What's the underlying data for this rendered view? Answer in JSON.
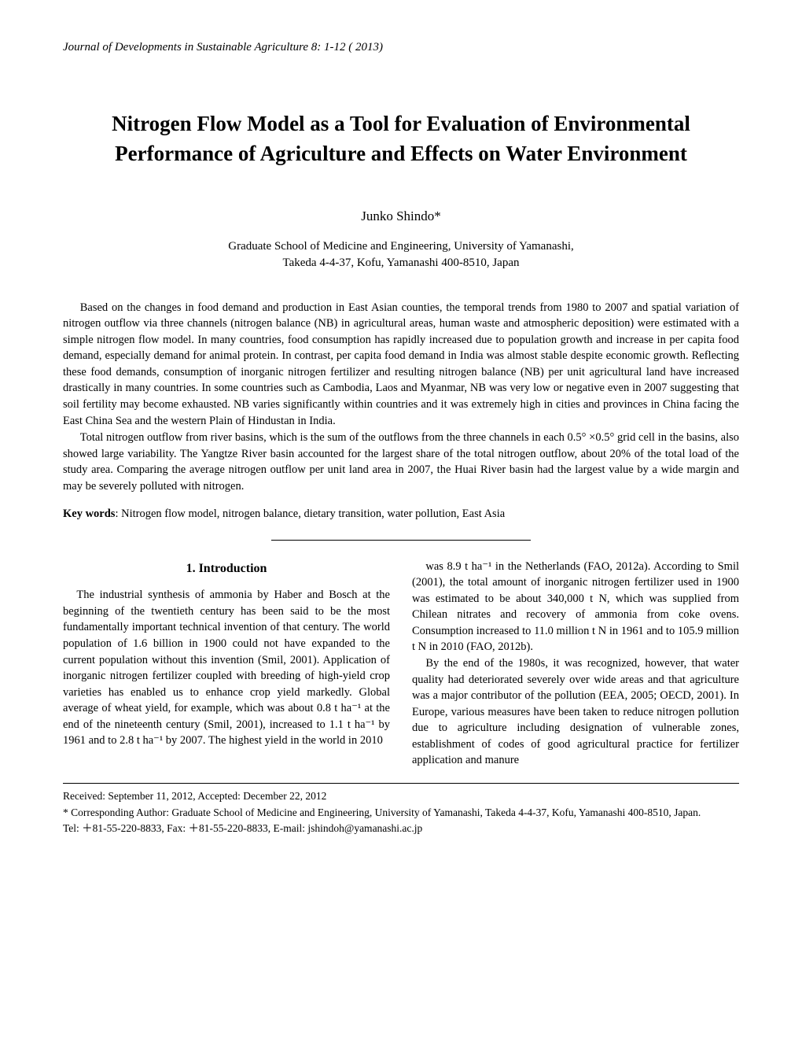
{
  "journal": "Journal of Developments in Sustainable Agriculture 8: 1-12 ( 2013)",
  "title": "Nitrogen Flow Model as a Tool for Evaluation of Environmental Performance of Agriculture and Effects on Water Environment",
  "author": "Junko Shindo*",
  "affiliation_line1": "Graduate School of Medicine and Engineering, University of Yamanashi,",
  "affiliation_line2": "Takeda 4-4-37, Kofu, Yamanashi 400-8510, Japan",
  "abstract": {
    "p1": "Based on the changes in food demand and production in East Asian counties, the temporal trends from 1980 to 2007 and spatial variation of nitrogen outflow via three channels (nitrogen balance (NB) in agricultural areas, human waste and atmospheric deposition) were estimated with a simple nitrogen flow model. In many countries, food consumption has rapidly increased due to population growth and increase in per capita food demand, especially demand for animal protein. In contrast, per capita food demand in India was almost stable despite economic growth. Reflecting these food demands, consumption of inorganic nitrogen fertilizer and resulting nitrogen balance (NB) per unit agricultural land have increased drastically in many countries. In some countries such as Cambodia, Laos and Myanmar, NB was very low or negative even in 2007 suggesting that soil fertility may become exhausted. NB varies significantly within countries and it was extremely high in cities and provinces in China facing the East China Sea and the western Plain of Hindustan in India.",
    "p2": "Total nitrogen outflow from river basins, which is the sum of the outflows from the three channels in each 0.5° ×0.5° grid cell in the basins, also showed large variability. The Yangtze River basin accounted for the largest share of the total nitrogen outflow, about 20% of the total load of the study area. Comparing the average nitrogen outflow per unit land area in 2007, the Huai River basin had the largest value by a wide margin and may be severely polluted with nitrogen."
  },
  "keywords_label": "Key words",
  "keywords_text": ": Nitrogen flow model, nitrogen balance, dietary transition, water pollution, East Asia",
  "section_heading": "1.  Introduction",
  "body": {
    "left_p1": "The industrial synthesis of ammonia by Haber and Bosch at the beginning of the twentieth century has been said to be the most fundamentally important technical invention of that century. The world population of 1.6 billion in 1900 could not have expanded to the current population without this invention (Smil, 2001). Application of inorganic nitrogen fertilizer coupled with breeding of high-yield crop varieties has enabled us to enhance crop yield markedly. Global average of wheat yield, for example, which was about 0.8 t ha⁻¹ at the end of the nineteenth century (Smil, 2001), increased to 1.1 t ha⁻¹ by 1961 and to 2.8 t ha⁻¹ by 2007. The highest yield in the world in 2010",
    "right_p1": "was 8.9 t ha⁻¹ in the Netherlands (FAO, 2012a). According to Smil (2001), the total amount of inorganic nitrogen fertilizer used in 1900 was estimated to be about 340,000 t N, which was supplied from Chilean nitrates and recovery of ammonia from coke ovens. Consumption increased to 11.0 million t N in 1961 and to 105.9 million t N in 2010 (FAO, 2012b).",
    "right_p2": "By the end of the 1980s, it was recognized, however, that water quality had deteriorated severely over wide areas and that agriculture was a major contributor of the pollution (EEA, 2005; OECD, 2001). In Europe, various measures have been taken to reduce nitrogen pollution due to agriculture including designation of vulnerable zones, establishment of codes of good agricultural practice for fertilizer application and manure"
  },
  "footer": {
    "received": "Received: September 11, 2012, Accepted: December 22, 2012",
    "corresponding": "* Corresponding Author: Graduate School of Medicine and Engineering, University of Yamanashi, Takeda 4-4-37, Kofu, Yamanashi 400-8510, Japan.",
    "contact": "Tel: ＋81-55-220-8833, Fax: ＋81-55-220-8833, E-mail: jshindoh@yamanashi.ac.jp"
  }
}
